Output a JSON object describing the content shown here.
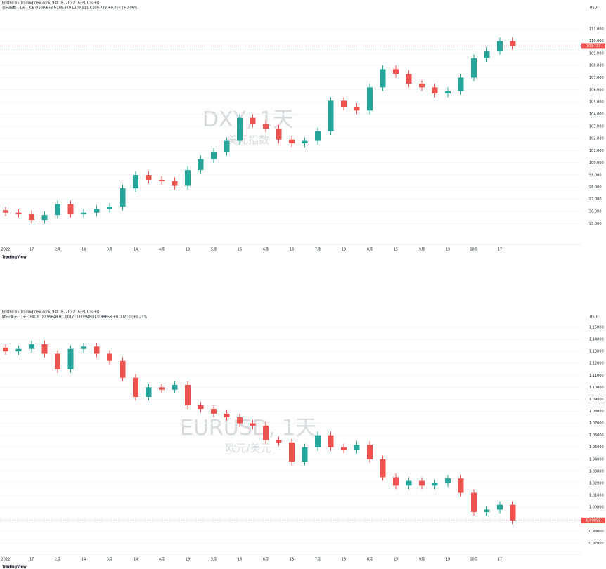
{
  "chart_data": [
    {
      "type": "candlestick",
      "header": "Posted by TradingView.com, 9月 16, 2022 16:21 UTC+8",
      "legend": "美元指数 · 1天 · ICE  O109.663 H109.879 L109.511 C109.733 +0.064 (+0.06%)",
      "watermark": "DXY, 1天",
      "watermark_sub": "美元指数",
      "currency": "USD",
      "price_label": "109.733",
      "brand": "TradingView",
      "up_color": "#26a69a",
      "down_color": "#ef5350",
      "grid": true,
      "categories": [
        "2022",
        null,
        "17",
        null,
        "2月",
        null,
        "14",
        null,
        "3月",
        null,
        "14",
        null,
        "4月",
        null,
        "19",
        null,
        "5月",
        null,
        "16",
        null,
        "6月",
        null,
        "13",
        null,
        "7月",
        null,
        "18",
        null,
        "8月",
        null,
        "15",
        null,
        "9月",
        null,
        "19",
        null,
        "10月",
        null,
        "17",
        null
      ],
      "open": [
        96.1,
        95.9,
        95.8,
        95.3,
        95.7,
        96.6,
        95.8,
        95.9,
        96.2,
        96.4,
        97.9,
        99.0,
        98.6,
        98.5,
        98.1,
        99.4,
        100.3,
        100.9,
        101.8,
        103.7,
        103.2,
        102.8,
        101.9,
        101.6,
        101.8,
        102.6,
        105.1,
        104.6,
        104.3,
        106.2,
        107.7,
        107.3,
        106.5,
        106.2,
        105.7,
        105.9,
        107.0,
        108.6,
        109.2,
        110.0
      ],
      "high": [
        96.4,
        96.2,
        96.1,
        96.0,
        96.9,
        96.9,
        96.2,
        96.5,
        96.7,
        98.2,
        99.3,
        99.3,
        98.9,
        98.8,
        99.7,
        100.6,
        101.2,
        102.1,
        104.0,
        104.0,
        103.5,
        103.1,
        102.2,
        102.1,
        102.9,
        105.4,
        105.4,
        104.9,
        106.5,
        108.0,
        108.0,
        107.6,
        106.8,
        106.5,
        106.2,
        107.3,
        108.9,
        109.5,
        110.3,
        110.3
      ],
      "low": [
        95.6,
        95.5,
        95.0,
        95.0,
        95.4,
        95.5,
        95.5,
        95.6,
        95.9,
        96.1,
        97.6,
        98.3,
        98.2,
        97.8,
        97.8,
        99.1,
        100.0,
        100.6,
        101.5,
        102.9,
        102.5,
        101.6,
        101.3,
        101.3,
        101.5,
        102.3,
        104.3,
        104.0,
        104.0,
        105.9,
        107.0,
        106.2,
        105.9,
        105.4,
        105.4,
        105.6,
        106.7,
        108.3,
        108.9,
        109.3
      ],
      "close": [
        95.9,
        95.8,
        95.3,
        95.7,
        96.6,
        95.8,
        95.9,
        96.2,
        96.4,
        97.9,
        99.0,
        98.6,
        98.5,
        98.1,
        99.4,
        100.3,
        100.9,
        101.8,
        103.7,
        103.2,
        102.8,
        101.9,
        101.6,
        101.8,
        102.6,
        105.1,
        104.6,
        104.3,
        106.2,
        107.7,
        107.3,
        106.5,
        106.2,
        105.7,
        105.9,
        107.0,
        108.6,
        109.2,
        110.0,
        109.6
      ],
      "ylim": [
        93.4,
        112.4
      ],
      "yticks": [
        {
          "value": 95,
          "label": "95.000"
        },
        {
          "value": 96,
          "label": "96.000"
        },
        {
          "value": 97,
          "label": "97.000"
        },
        {
          "value": 98,
          "label": "98.000"
        },
        {
          "value": 99,
          "label": "99.000"
        },
        {
          "value": 100,
          "label": "100.000"
        },
        {
          "value": 101,
          "label": "101.000"
        },
        {
          "value": 102,
          "label": "102.000"
        },
        {
          "value": 103,
          "label": "103.000"
        },
        {
          "value": 104,
          "label": "104.000"
        },
        {
          "value": 105,
          "label": "105.000"
        },
        {
          "value": 106,
          "label": "106.000"
        },
        {
          "value": 107,
          "label": "107.000"
        },
        {
          "value": 108,
          "label": "108.000"
        },
        {
          "value": 109,
          "label": "109.000"
        },
        {
          "value": 110,
          "label": "110.000"
        },
        {
          "value": 111,
          "label": "111.000"
        }
      ]
    },
    {
      "type": "candlestick",
      "header": "Posted by TradingView.com, 9月 16, 2022 16:21 UTC+8",
      "legend": "欧元/美元 · 1天 · FXCM  O0.99648 H1.00171 L0.99480 C0.99858 +0.00210 (+0.21%)",
      "watermark": "EURUSD, 1天",
      "watermark_sub": "欧元/美元",
      "currency": "USD",
      "price_label": "0.99858",
      "brand": "TradingView",
      "up_color": "#26a69a",
      "down_color": "#ef5350",
      "grid": true,
      "categories": [
        "2022",
        null,
        "17",
        null,
        "2月",
        null,
        "14",
        null,
        "3月",
        null,
        "14",
        null,
        "4月",
        null,
        "19",
        null,
        "5月",
        null,
        "16",
        null,
        "6月",
        null,
        "13",
        null,
        "7月",
        null,
        "18",
        null,
        "8月",
        null,
        "15",
        null,
        "9月",
        null,
        "19",
        null,
        "10月",
        null,
        "17",
        null
      ],
      "open": [
        1.133,
        1.13,
        1.132,
        1.136,
        1.128,
        1.115,
        1.132,
        1.134,
        1.128,
        1.122,
        1.108,
        1.092,
        1.1,
        1.098,
        1.102,
        1.085,
        1.082,
        1.078,
        1.075,
        1.07,
        1.068,
        1.056,
        1.054,
        1.038,
        1.05,
        1.06,
        1.05,
        1.048,
        1.052,
        1.04,
        1.025,
        1.018,
        1.022,
        1.018,
        1.02,
        1.024,
        1.012,
        0.996,
        0.998,
        1.002
      ],
      "high": [
        1.136,
        1.135,
        1.139,
        1.139,
        1.131,
        1.135,
        1.137,
        1.137,
        1.131,
        1.125,
        1.111,
        1.103,
        1.103,
        1.105,
        1.105,
        1.088,
        1.085,
        1.081,
        1.078,
        1.073,
        1.071,
        1.059,
        1.057,
        1.053,
        1.063,
        1.063,
        1.053,
        1.055,
        1.055,
        1.043,
        1.028,
        1.025,
        1.025,
        1.023,
        1.027,
        1.027,
        1.015,
        1.001,
        1.005,
        1.005
      ],
      "low": [
        1.127,
        1.127,
        1.129,
        1.125,
        1.112,
        1.112,
        1.129,
        1.125,
        1.119,
        1.105,
        1.089,
        1.089,
        1.095,
        1.095,
        1.082,
        1.079,
        1.075,
        1.072,
        1.067,
        1.065,
        1.053,
        1.051,
        1.035,
        1.035,
        1.047,
        1.047,
        1.045,
        1.045,
        1.037,
        1.022,
        1.015,
        1.015,
        1.015,
        1.015,
        1.017,
        1.009,
        0.993,
        0.993,
        0.995,
        0.986
      ],
      "close": [
        1.13,
        1.132,
        1.136,
        1.128,
        1.115,
        1.132,
        1.134,
        1.128,
        1.122,
        1.108,
        1.092,
        1.1,
        1.098,
        1.102,
        1.085,
        1.082,
        1.078,
        1.075,
        1.07,
        1.068,
        1.056,
        1.054,
        1.038,
        1.05,
        1.06,
        1.05,
        1.048,
        1.052,
        1.04,
        1.025,
        1.018,
        1.022,
        1.018,
        1.02,
        1.024,
        1.012,
        0.996,
        0.998,
        1.002,
        0.989
      ],
      "ylim": [
        0.962,
        1.157
      ],
      "yticks": [
        {
          "value": 0.97,
          "label": "0.97000"
        },
        {
          "value": 0.98,
          "label": "0.98000"
        },
        {
          "value": 0.99,
          "label": "0.99000"
        },
        {
          "value": 1.0,
          "label": "1.00000"
        },
        {
          "value": 1.01,
          "label": "1.01000"
        },
        {
          "value": 1.02,
          "label": "1.02000"
        },
        {
          "value": 1.03,
          "label": "1.03000"
        },
        {
          "value": 1.04,
          "label": "1.04000"
        },
        {
          "value": 1.05,
          "label": "1.05000"
        },
        {
          "value": 1.06,
          "label": "1.06000"
        },
        {
          "value": 1.07,
          "label": "1.07000"
        },
        {
          "value": 1.08,
          "label": "1.08000"
        },
        {
          "value": 1.09,
          "label": "1.09000"
        },
        {
          "value": 1.1,
          "label": "1.10000"
        },
        {
          "value": 1.11,
          "label": "1.11000"
        },
        {
          "value": 1.12,
          "label": "1.12000"
        },
        {
          "value": 1.13,
          "label": "1.13000"
        },
        {
          "value": 1.14,
          "label": "1.14000"
        },
        {
          "value": 1.15,
          "label": "1.15000"
        }
      ]
    }
  ]
}
